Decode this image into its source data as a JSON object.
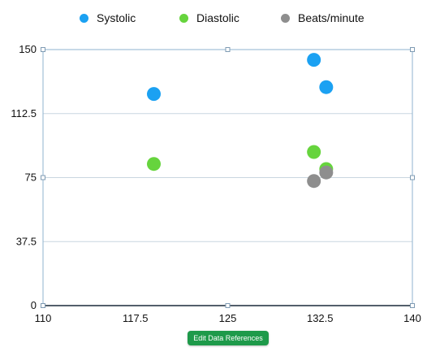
{
  "chart_data": {
    "type": "scatter",
    "title": "",
    "xlabel": "",
    "ylabel": "",
    "xlim": [
      110,
      140
    ],
    "ylim": [
      0,
      150
    ],
    "x_ticks": [
      "110",
      "117.5",
      "125",
      "132.5",
      "140"
    ],
    "y_ticks": [
      "0",
      "37.5",
      "75",
      "112.5",
      "150"
    ],
    "grid": "horizontal",
    "legend_position": "top",
    "series": [
      {
        "name": "Systolic",
        "color": "#1ba1f2",
        "points": [
          {
            "x": 119,
            "y": 124
          },
          {
            "x": 132,
            "y": 144
          },
          {
            "x": 133,
            "y": 128
          }
        ]
      },
      {
        "name": "Diastolic",
        "color": "#66d43d",
        "points": [
          {
            "x": 119,
            "y": 83
          },
          {
            "x": 132,
            "y": 90
          },
          {
            "x": 133,
            "y": 80
          }
        ]
      },
      {
        "name": "Beats/minute",
        "color": "#8e8e8e",
        "points": [
          {
            "x": 133,
            "y": 78
          },
          {
            "x": 132,
            "y": 73
          }
        ]
      }
    ]
  },
  "edit_button": {
    "label": "Edit Data References"
  }
}
